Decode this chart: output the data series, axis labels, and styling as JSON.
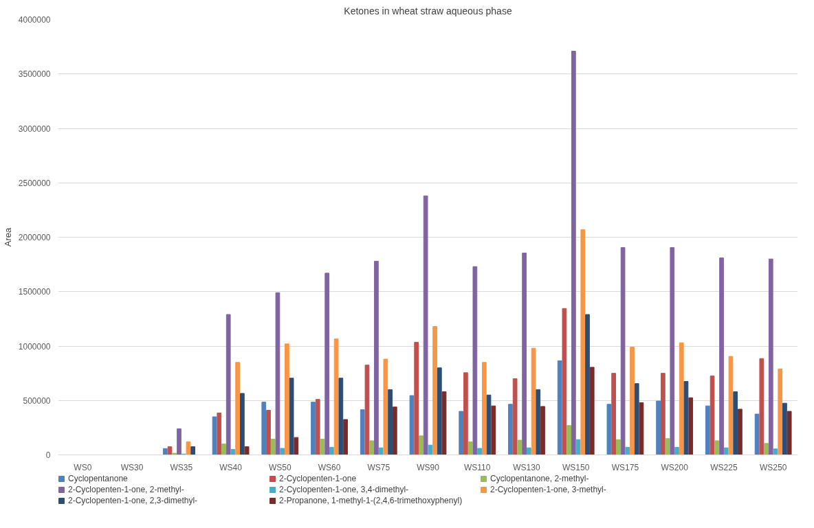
{
  "chart_data": {
    "type": "bar",
    "title": "Ketones in wheat straw aqueous phase",
    "ylabel": "Area",
    "categories": [
      "WS0",
      "WS30",
      "WS35",
      "WS40",
      "WS50",
      "WS60",
      "WS75",
      "WS90",
      "WS110",
      "WS130",
      "WS150",
      "WS175",
      "WS200",
      "WS225",
      "WS250"
    ],
    "ylim": [
      0,
      4000000
    ],
    "yticks": [
      0,
      500000,
      1000000,
      1500000,
      2000000,
      2500000,
      3000000,
      3500000,
      4000000
    ],
    "grid": "y",
    "legend": "bottom",
    "series": [
      {
        "name": "Cyclopentanone",
        "color": "#4f81bd",
        "values": [
          0,
          0,
          58000,
          350000,
          485000,
          485000,
          415000,
          545000,
          400000,
          465000,
          865000,
          465000,
          495000,
          450000,
          375000
        ]
      },
      {
        "name": "2-Cyclopenten-1-one",
        "color": "#c0504d",
        "values": [
          0,
          0,
          75000,
          385000,
          410000,
          510000,
          825000,
          1035000,
          755000,
          700000,
          1345000,
          750000,
          750000,
          725000,
          885000
        ]
      },
      {
        "name": "Cyclopentanone, 2-methyl-",
        "color": "#9bbb59",
        "values": [
          0,
          0,
          15000,
          100000,
          145000,
          145000,
          130000,
          175000,
          120000,
          135000,
          270000,
          140000,
          150000,
          130000,
          105000
        ]
      },
      {
        "name": "2-Cyclopenten-1-one, 2-methyl-",
        "color": "#8064a2",
        "values": [
          0,
          0,
          240000,
          1290000,
          1490000,
          1670000,
          1780000,
          2380000,
          1730000,
          1855000,
          3710000,
          1905000,
          1905000,
          1810000,
          1800000
        ]
      },
      {
        "name": "2-Cyclopenten-1-one, 3,4-dimethyl-",
        "color": "#4bacc6",
        "values": [
          0,
          0,
          8000,
          50000,
          60000,
          70000,
          65000,
          90000,
          60000,
          65000,
          140000,
          70000,
          70000,
          65000,
          55000
        ]
      },
      {
        "name": "2-Cyclopenten-1-one, 3-methyl-",
        "color": "#f79646",
        "values": [
          0,
          0,
          120000,
          850000,
          1020000,
          1065000,
          880000,
          1180000,
          850000,
          980000,
          2070000,
          990000,
          1030000,
          905000,
          790000
        ]
      },
      {
        "name": "2-Cyclopenten-1-one, 2,3-dimethyl-",
        "color": "#2c4d75",
        "values": [
          0,
          0,
          75000,
          565000,
          705000,
          705000,
          600000,
          800000,
          550000,
          600000,
          1290000,
          655000,
          675000,
          580000,
          475000
        ]
      },
      {
        "name": "2-Propanone, 1-methyl-1-(2,4,6-trimethoxyphenyl)",
        "color": "#772c2a",
        "values": [
          0,
          0,
          0,
          75000,
          160000,
          325000,
          440000,
          580000,
          450000,
          445000,
          805000,
          480000,
          525000,
          420000,
          400000
        ]
      }
    ]
  }
}
